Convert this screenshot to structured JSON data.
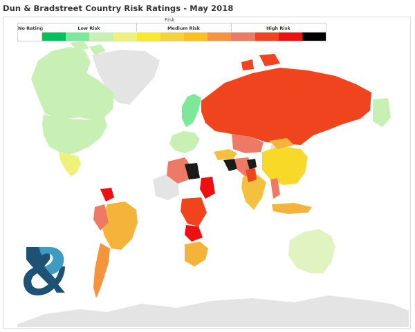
{
  "page": {
    "title": "Dun & Bradstreet Country Risk Ratings - May 2018"
  },
  "legend": {
    "title": "Risk",
    "groups": [
      {
        "label": "No Rating"
      },
      {
        "label": "Low Risk"
      },
      {
        "label": "Medium Risk"
      },
      {
        "label": "High Risk"
      }
    ],
    "swatches": [
      "#ffffff",
      "#00c15a",
      "#7ee89a",
      "#c8f0b4",
      "#eef27a",
      "#f8e82e",
      "#f4d23a",
      "#f8c020",
      "#f5943c",
      "#ec7a64",
      "#f0441e",
      "#ee1010",
      "#000000"
    ]
  },
  "colors": {
    "no_data": "#e4e4e4",
    "ocean": "#ffffff",
    "logo_dark": "#1d5275",
    "logo_light": "#3e9cc2"
  }
}
